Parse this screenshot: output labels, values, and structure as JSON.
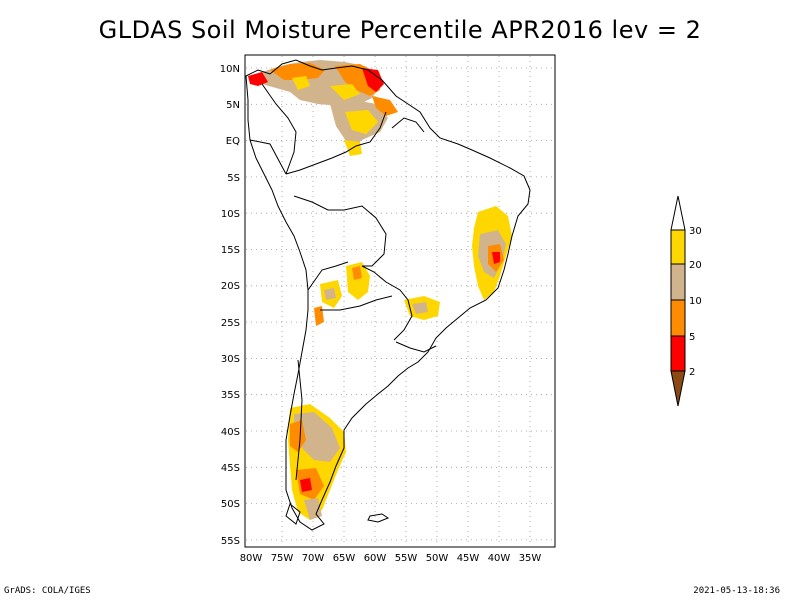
{
  "title": "GLDAS Soil Moisture Percentile APR2016 lev = 2",
  "footer": {
    "left": "GrADS: COLA/IGES",
    "right": "2021-05-13-18:36"
  },
  "map": {
    "lon_labels": [
      "80W",
      "75W",
      "70W",
      "65W",
      "60W",
      "55W",
      "50W",
      "45W",
      "40W",
      "35W"
    ],
    "lat_labels": [
      "10N",
      "5N",
      "EQ",
      "5S",
      "10S",
      "15S",
      "20S",
      "25S",
      "30S",
      "35S",
      "40S",
      "45S",
      "50S",
      "55S"
    ],
    "colors": {
      "below_2": "#8b4a14",
      "2_5": "#ff0000",
      "5_10": "#ff8c00",
      "10_20": "#d2b48c",
      "20_30": "#ffd700",
      "above_30": "#ffffff"
    }
  },
  "legend": {
    "labels": [
      "2",
      "5",
      "10",
      "20",
      "30"
    ]
  }
}
